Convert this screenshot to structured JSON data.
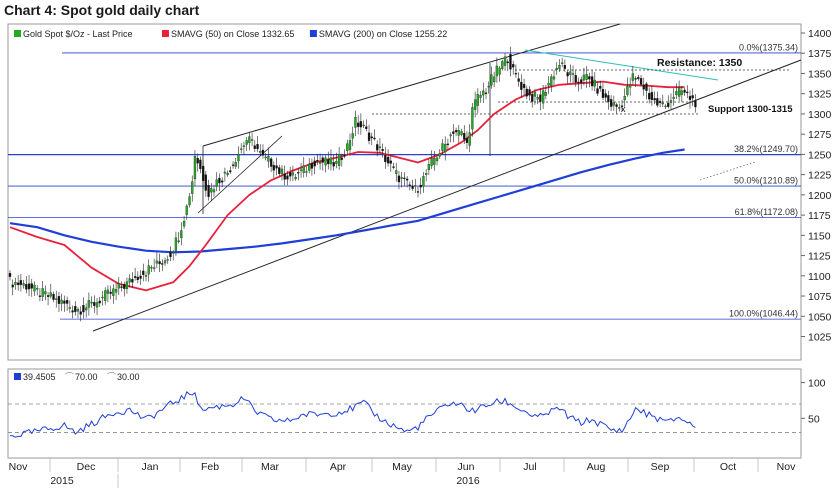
{
  "chart_data": {
    "type": "line",
    "title": "Chart 4: Spot gold daily chart",
    "price_panel": {
      "legend": [
        {
          "name": "Gold Spot $/Oz - Last Price",
          "color": "#22aa22",
          "swatch": "square"
        },
        {
          "name": "SMAVG (50) on Close 1332.65",
          "color": "#e8213b",
          "swatch": "square"
        },
        {
          "name": "SMAVG (200) on Close 1255.22",
          "color": "#1f3fd6",
          "swatch": "square"
        }
      ],
      "y_ticks": [
        1025,
        1050,
        1075,
        1100,
        1125,
        1150,
        1175,
        1200,
        1225,
        1250,
        1275,
        1300,
        1325,
        1350,
        1375,
        1400
      ],
      "ylim": [
        1010,
        1405
      ],
      "colors": {
        "up": "#22aa22",
        "down": "#111111",
        "sma50": "#e8213b",
        "sma200": "#1f3fd6",
        "fib": "#2a3fd6",
        "trend": "#222222",
        "resistance": "#33bbbb"
      },
      "fib_levels": [
        {
          "label": "0.0%(1375.34)",
          "value": 1375.34
        },
        {
          "label": "38.2%(1249.70)",
          "value": 1249.7
        },
        {
          "label": "50.0%(1210.89)",
          "value": 1210.89
        },
        {
          "label": "61.8%(1172.08)",
          "value": 1172.08
        },
        {
          "label": "100.0%(1046.44)",
          "value": 1046.44
        }
      ],
      "annotations": {
        "resistance": "Resistance: 1350",
        "support": "Support 1300-1315",
        "marker": "x"
      },
      "anchor_closes": [
        [
          0,
          1093
        ],
        [
          6,
          1088
        ],
        [
          10,
          1080
        ],
        [
          14,
          1075
        ],
        [
          18,
          1068
        ],
        [
          22,
          1062
        ],
        [
          24,
          1058
        ],
        [
          27,
          1060
        ],
        [
          31,
          1066
        ],
        [
          35,
          1075
        ],
        [
          39,
          1082
        ],
        [
          43,
          1090
        ],
        [
          47,
          1100
        ],
        [
          51,
          1108
        ],
        [
          55,
          1115
        ],
        [
          59,
          1128
        ],
        [
          62,
          1150
        ],
        [
          65,
          1185
        ],
        [
          67,
          1218
        ],
        [
          68,
          1250
        ],
        [
          70,
          1232
        ],
        [
          73,
          1202
        ],
        [
          76,
          1216
        ],
        [
          80,
          1228
        ],
        [
          84,
          1252
        ],
        [
          87,
          1268
        ],
        [
          90,
          1262
        ],
        [
          93,
          1245
        ],
        [
          96,
          1240
        ],
        [
          100,
          1226
        ],
        [
          104,
          1222
        ],
        [
          108,
          1230
        ],
        [
          112,
          1242
        ],
        [
          116,
          1240
        ],
        [
          120,
          1238
        ],
        [
          124,
          1260
        ],
        [
          127,
          1290
        ],
        [
          130,
          1282
        ],
        [
          134,
          1265
        ],
        [
          138,
          1245
        ],
        [
          142,
          1225
        ],
        [
          146,
          1212
        ],
        [
          149,
          1206
        ],
        [
          152,
          1220
        ],
        [
          156,
          1245
        ],
        [
          160,
          1262
        ],
        [
          163,
          1280
        ],
        [
          166,
          1275
        ],
        [
          168,
          1262
        ],
        [
          170,
          1305
        ],
        [
          172,
          1320
        ],
        [
          175,
          1330
        ],
        [
          178,
          1348
        ],
        [
          181,
          1362
        ],
        [
          183,
          1370
        ],
        [
          185,
          1352
        ],
        [
          188,
          1335
        ],
        [
          191,
          1322
        ],
        [
          195,
          1318
        ],
        [
          199,
          1345
        ],
        [
          202,
          1362
        ],
        [
          205,
          1350
        ],
        [
          208,
          1340
        ],
        [
          212,
          1345
        ],
        [
          215,
          1335
        ],
        [
          218,
          1322
        ],
        [
          221,
          1312
        ],
        [
          224,
          1308
        ],
        [
          226,
          1322
        ],
        [
          229,
          1345
        ],
        [
          232,
          1338
        ],
        [
          235,
          1322
        ],
        [
          238,
          1312
        ],
        [
          241,
          1310
        ],
        [
          244,
          1323
        ],
        [
          247,
          1328
        ],
        [
          250,
          1320
        ],
        [
          252,
          1315
        ]
      ],
      "sma50_points": [
        [
          0,
          1160
        ],
        [
          10,
          1148
        ],
        [
          20,
          1138
        ],
        [
          30,
          1110
        ],
        [
          40,
          1090
        ],
        [
          50,
          1082
        ],
        [
          60,
          1092
        ],
        [
          66,
          1112
        ],
        [
          72,
          1138
        ],
        [
          80,
          1175
        ],
        [
          88,
          1200
        ],
        [
          96,
          1218
        ],
        [
          104,
          1230
        ],
        [
          112,
          1240
        ],
        [
          120,
          1246
        ],
        [
          128,
          1253
        ],
        [
          136,
          1252
        ],
        [
          144,
          1245
        ],
        [
          150,
          1240
        ],
        [
          158,
          1250
        ],
        [
          166,
          1265
        ],
        [
          172,
          1280
        ],
        [
          178,
          1300
        ],
        [
          186,
          1318
        ],
        [
          194,
          1330
        ],
        [
          202,
          1336
        ],
        [
          210,
          1338
        ],
        [
          218,
          1340
        ],
        [
          226,
          1336
        ],
        [
          234,
          1335
        ],
        [
          242,
          1333
        ],
        [
          248,
          1333
        ]
      ],
      "sma200_points": [
        [
          0,
          1165
        ],
        [
          10,
          1160
        ],
        [
          20,
          1150
        ],
        [
          30,
          1142
        ],
        [
          40,
          1136
        ],
        [
          50,
          1131
        ],
        [
          60,
          1129
        ],
        [
          70,
          1130
        ],
        [
          80,
          1133
        ],
        [
          90,
          1136
        ],
        [
          100,
          1140
        ],
        [
          110,
          1145
        ],
        [
          120,
          1150
        ],
        [
          130,
          1156
        ],
        [
          140,
          1162
        ],
        [
          150,
          1168
        ],
        [
          160,
          1178
        ],
        [
          170,
          1188
        ],
        [
          180,
          1198
        ],
        [
          190,
          1208
        ],
        [
          200,
          1218
        ],
        [
          210,
          1228
        ],
        [
          220,
          1237
        ],
        [
          230,
          1245
        ],
        [
          240,
          1252
        ],
        [
          248,
          1256
        ]
      ]
    },
    "rsi_panel": {
      "legend": [
        {
          "name": "39.4505",
          "color": "#1f3fd6",
          "swatch": "square"
        },
        {
          "name": "70.00",
          "color": "#888888",
          "swatch": "dash"
        },
        {
          "name": "30.00",
          "color": "#888888",
          "swatch": "dash"
        }
      ],
      "y_ticks": [
        50,
        100
      ],
      "ylim": [
        0,
        105
      ],
      "levels": [
        70,
        30
      ],
      "color": "#1f3fd6",
      "anchor_values": [
        [
          0,
          25
        ],
        [
          8,
          30
        ],
        [
          14,
          35
        ],
        [
          20,
          40
        ],
        [
          24,
          30
        ],
        [
          30,
          42
        ],
        [
          38,
          58
        ],
        [
          44,
          62
        ],
        [
          50,
          48
        ],
        [
          56,
          62
        ],
        [
          60,
          72
        ],
        [
          64,
          80
        ],
        [
          68,
          88
        ],
        [
          70,
          62
        ],
        [
          76,
          66
        ],
        [
          82,
          70
        ],
        [
          86,
          78
        ],
        [
          90,
          60
        ],
        [
          96,
          48
        ],
        [
          102,
          46
        ],
        [
          108,
          55
        ],
        [
          114,
          56
        ],
        [
          120,
          58
        ],
        [
          126,
          64
        ],
        [
          130,
          72
        ],
        [
          134,
          56
        ],
        [
          138,
          45
        ],
        [
          142,
          38
        ],
        [
          146,
          31
        ],
        [
          150,
          38
        ],
        [
          154,
          52
        ],
        [
          158,
          62
        ],
        [
          162,
          72
        ],
        [
          166,
          68
        ],
        [
          170,
          60
        ],
        [
          174,
          66
        ],
        [
          178,
          72
        ],
        [
          182,
          74
        ],
        [
          186,
          66
        ],
        [
          190,
          58
        ],
        [
          194,
          50
        ],
        [
          198,
          58
        ],
        [
          202,
          64
        ],
        [
          206,
          50
        ],
        [
          210,
          44
        ],
        [
          214,
          48
        ],
        [
          218,
          40
        ],
        [
          222,
          32
        ],
        [
          226,
          36
        ],
        [
          230,
          64
        ],
        [
          234,
          56
        ],
        [
          238,
          50
        ],
        [
          242,
          44
        ],
        [
          246,
          52
        ],
        [
          250,
          42
        ],
        [
          252,
          39.45
        ]
      ]
    },
    "x_axis": {
      "months": [
        "Nov",
        "Dec",
        "Jan",
        "Feb",
        "Mar",
        "Apr",
        "May",
        "Jun",
        "Jul",
        "Aug",
        "Sep",
        "Oct",
        "Nov"
      ],
      "years": [
        "2015",
        "2016"
      ]
    }
  }
}
